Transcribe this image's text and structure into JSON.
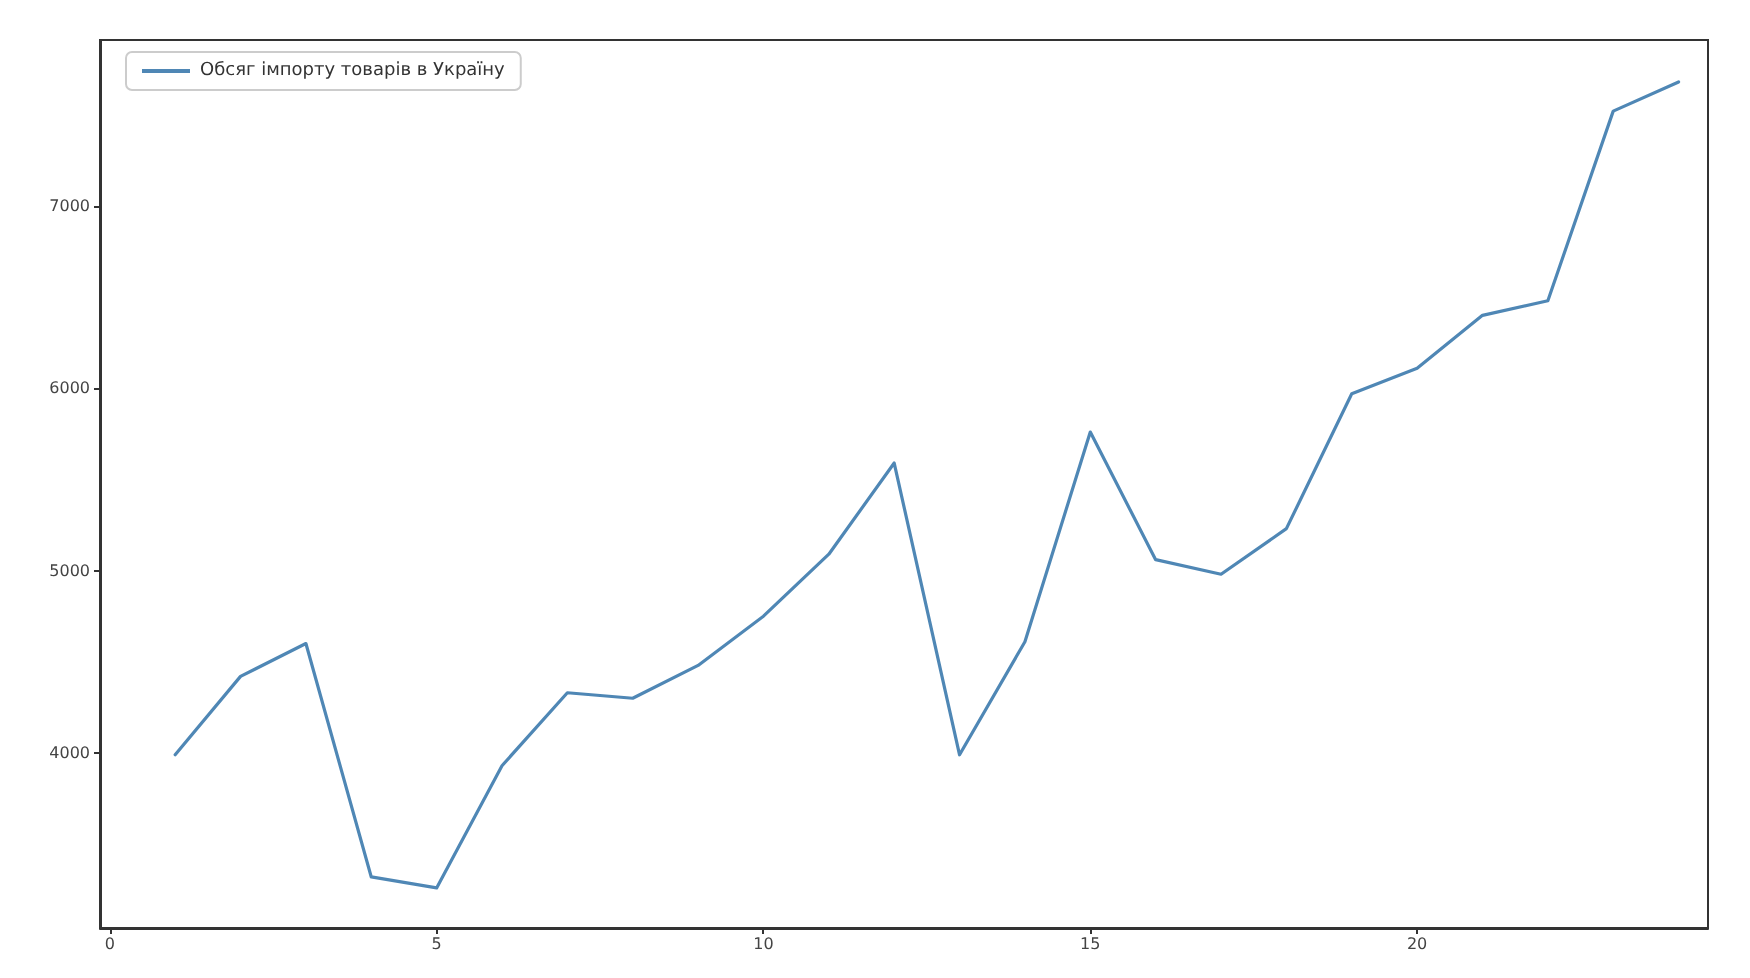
{
  "chart_data": {
    "type": "line",
    "x": [
      1,
      2,
      3,
      4,
      5,
      6,
      7,
      8,
      9,
      10,
      11,
      12,
      13,
      14,
      15,
      16,
      17,
      18,
      19,
      20,
      21,
      22,
      23,
      24
    ],
    "series": [
      {
        "name": "Обсяг імпорту товарів в Україну",
        "color": "#4f87b5",
        "values": [
          3990,
          4420,
          4600,
          3320,
          3260,
          3930,
          4330,
          4300,
          4480,
          4750,
          5090,
          5590,
          3990,
          4610,
          5760,
          5060,
          4980,
          5230,
          5970,
          6110,
          6400,
          6480,
          7520,
          7680
        ]
      }
    ],
    "xlim": [
      -0.15,
      24.45
    ],
    "xticks": [
      0,
      5,
      10,
      15,
      20
    ],
    "ylim": [
      3040,
      7910
    ],
    "yticks": [
      4000,
      5000,
      6000,
      7000
    ],
    "legend": "top left",
    "grid": false,
    "marker": "none",
    "line_style": "solid"
  }
}
